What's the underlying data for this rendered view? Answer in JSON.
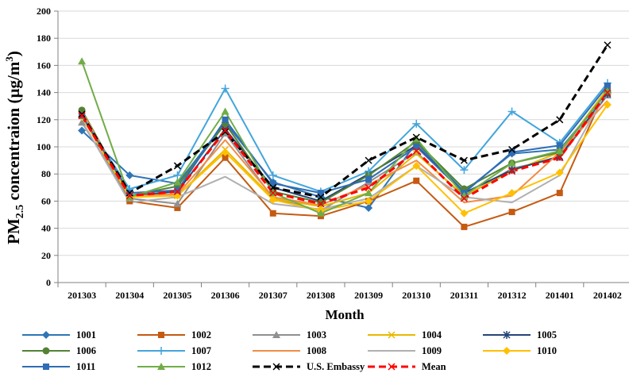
{
  "chart_data": {
    "type": "line",
    "title": "",
    "xlabel": "Month",
    "ylabel": {
      "main": "PM",
      "sub": "2.5",
      "rest": " concentraion (µg/m",
      "sup": "3",
      "end": ")"
    },
    "ylim": [
      0,
      200
    ],
    "yticks": [
      "0",
      "20",
      "40",
      "60",
      "80",
      "100",
      "120",
      "140",
      "160",
      "180",
      "200"
    ],
    "grid": true,
    "legend_position": "bottom",
    "categories": [
      "201303",
      "201304",
      "201305",
      "201306",
      "201307",
      "201308",
      "201309",
      "201310",
      "201311",
      "201312",
      "201401",
      "201402"
    ],
    "series": [
      {
        "name": "1001",
        "color": "#2e75b6",
        "marker": "diamond",
        "dash": false,
        "values": [
          112,
          79,
          73,
          118,
          74,
          63,
          55,
          103,
          67,
          95,
          98,
          140
        ]
      },
      {
        "name": "1002",
        "color": "#c55a11",
        "marker": "square",
        "dash": false,
        "values": [
          124,
          60,
          55,
          92,
          51,
          49,
          60,
          75,
          41,
          52,
          66,
          145
        ]
      },
      {
        "name": "1003",
        "color": "#909090",
        "marker": "triangle",
        "dash": false,
        "values": [
          118,
          62,
          58,
          110,
          62,
          53,
          74,
          96,
          63,
          84,
          92,
          138
        ]
      },
      {
        "name": "1004",
        "color": "#e8b800",
        "marker": "x",
        "dash": false,
        "values": [
          124,
          63,
          64,
          98,
          62,
          56,
          66,
          95,
          64,
          82,
          96,
          143
        ]
      },
      {
        "name": "1005",
        "color": "#264478",
        "marker": "star",
        "dash": false,
        "values": [
          123,
          64,
          67,
          113,
          70,
          60,
          80,
          101,
          66,
          83,
          93,
          139
        ]
      },
      {
        "name": "1006",
        "color": "#548235",
        "marker": "circle",
        "dash": false,
        "values": [
          127,
          64,
          71,
          117,
          67,
          59,
          79,
          104,
          69,
          88,
          96,
          141
        ]
      },
      {
        "name": "1007",
        "color": "#43a5dc",
        "marker": "plus",
        "dash": false,
        "values": [
          122,
          69,
          79,
          143,
          79,
          67,
          82,
          117,
          83,
          126,
          103,
          147
        ]
      },
      {
        "name": "1008",
        "color": "#f08c46",
        "marker": "none",
        "dash": false,
        "values": [
          126,
          64,
          65,
          105,
          63,
          57,
          72,
          90,
          59,
          64,
          96,
          134
        ]
      },
      {
        "name": "1009",
        "color": "#b0b0b0",
        "marker": "none",
        "dash": false,
        "values": [
          119,
          59,
          63,
          78,
          58,
          54,
          62,
          86,
          63,
          59,
          79,
          142
        ]
      },
      {
        "name": "1010",
        "color": "#ffc000",
        "marker": "diamond",
        "dash": false,
        "values": [
          122,
          63,
          64,
          96,
          61,
          53,
          60,
          86,
          51,
          66,
          81,
          131
        ]
      },
      {
        "name": "1011",
        "color": "#2f6db5",
        "marker": "square",
        "dash": false,
        "values": [
          123,
          66,
          68,
          120,
          73,
          66,
          76,
          100,
          66,
          96,
          101,
          145
        ]
      },
      {
        "name": "1012",
        "color": "#70ad47",
        "marker": "triangle",
        "dash": false,
        "values": [
          163,
          63,
          74,
          126,
          66,
          51,
          66,
          106,
          64,
          88,
          97,
          141
        ]
      },
      {
        "name": "U.S. Embassy",
        "color": "#000000",
        "marker": "x",
        "dash": true,
        "values": [
          124,
          66,
          86,
          111,
          70,
          63,
          90,
          107,
          90,
          98,
          120,
          175
        ]
      },
      {
        "name": "Mean",
        "color": "#ff0000",
        "marker": "x",
        "dash": true,
        "values": [
          123,
          64,
          67,
          112,
          66,
          58,
          70,
          97,
          62,
          82,
          92,
          140
        ]
      }
    ]
  }
}
